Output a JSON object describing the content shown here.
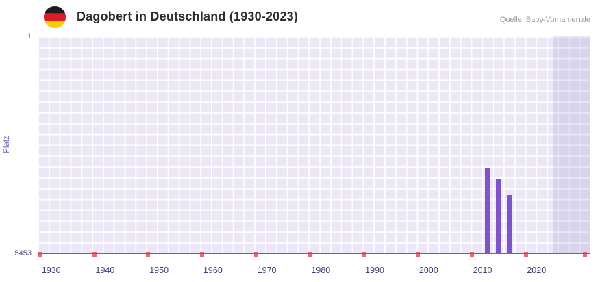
{
  "header": {
    "title": "Dagobert in Deutschland (1930-2023)",
    "source": "Quelle: Baby-Vornamen.de",
    "flag_icon": "germany-flag-icon"
  },
  "chart_data": {
    "type": "bar",
    "title": "Dagobert in Deutschland (1930-2023)",
    "xlabel": "",
    "ylabel": "Platz",
    "y_axis": {
      "top_tick": "1",
      "bottom_tick": "5453",
      "best_rank": 1,
      "worst_rank": 5453,
      "inverted": true
    },
    "x_axis": {
      "range_years": [
        1927.5,
        2030
      ],
      "tick_years": [
        1930,
        1940,
        1950,
        1960,
        1970,
        1980,
        1990,
        2000,
        2010,
        2020
      ]
    },
    "bars": [
      {
        "year": 2011,
        "rank": 3310
      },
      {
        "year": 2013,
        "rank": 3600
      },
      {
        "year": 2015,
        "rank": 3990
      }
    ],
    "bottom_marker_years": [
      1928,
      1938,
      1948,
      1958,
      1968,
      1978,
      1988,
      1998,
      2008,
      2018,
      2029
    ],
    "future_band": {
      "start_year": 2023,
      "end_year": 2030
    },
    "grid": true,
    "legend": "none",
    "colors": {
      "bar": "#7d55c8",
      "plot_bg": "#ebe7f6",
      "grid": "#ffffff",
      "baseline": "#6a5acd",
      "marker": "#e8697a",
      "axis_text": "#4a4a80",
      "x_label_text": "#3d3d72"
    }
  }
}
